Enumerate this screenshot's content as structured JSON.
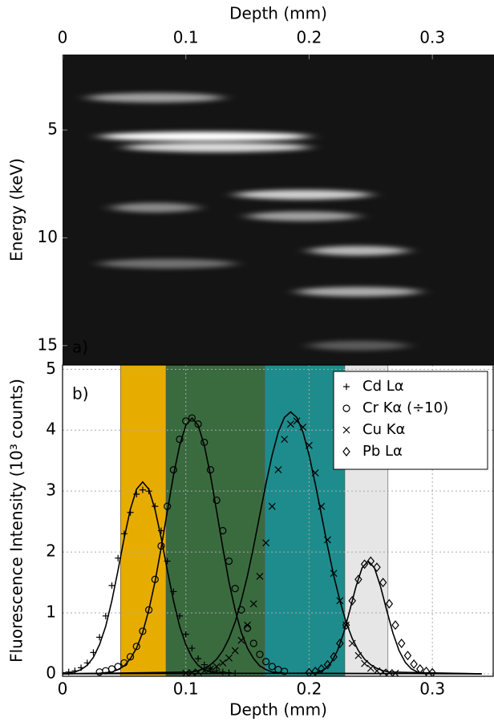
{
  "chart_data": [
    {
      "type": "heatmap",
      "xlabel": "Depth (mm)",
      "ylabel": "Energy (keV)",
      "panel_label": "a)",
      "xlim": [
        0,
        0.35
      ],
      "xticks": [
        0,
        0.1,
        0.2,
        0.3
      ],
      "ylim": [
        1.5,
        15.9
      ],
      "yticks": [
        5,
        10,
        15
      ],
      "bands": [
        {
          "energy": 3.5,
          "depth": [
            0.02,
            0.13
          ],
          "intensity": 0.6
        },
        {
          "energy": 5.3,
          "depth": [
            0.03,
            0.2
          ],
          "intensity": 1.0
        },
        {
          "energy": 5.8,
          "depth": [
            0.05,
            0.2
          ],
          "intensity": 0.85
        },
        {
          "energy": 8.0,
          "depth": [
            0.14,
            0.25
          ],
          "intensity": 0.8
        },
        {
          "energy": 8.6,
          "depth": [
            0.04,
            0.11
          ],
          "intensity": 0.5
        },
        {
          "energy": 9.0,
          "depth": [
            0.15,
            0.24
          ],
          "intensity": 0.6
        },
        {
          "energy": 10.6,
          "depth": [
            0.2,
            0.28
          ],
          "intensity": 0.7
        },
        {
          "energy": 11.2,
          "depth": [
            0.03,
            0.14
          ],
          "intensity": 0.4
        },
        {
          "energy": 12.5,
          "depth": [
            0.19,
            0.29
          ],
          "intensity": 0.65
        },
        {
          "energy": 15.0,
          "depth": [
            0.2,
            0.28
          ],
          "intensity": 0.3
        }
      ]
    },
    {
      "type": "scatter",
      "xlabel": "Depth (mm)",
      "ylabel": "Fluorescence Intensity (10³ counts)",
      "panel_label": "b)",
      "xlim": [
        0,
        0.35
      ],
      "xticks": [
        0,
        0.1,
        0.2,
        0.3
      ],
      "ylim": [
        -0.04,
        5.07
      ],
      "yticks": [
        0,
        1,
        2,
        3,
        4,
        5
      ],
      "grid": true,
      "legend": "upper right",
      "regions": [
        {
          "range": [
            0.047,
            0.084
          ],
          "color": "#e6ac00"
        },
        {
          "range": [
            0.084,
            0.164
          ],
          "color": "#3a6b3f"
        },
        {
          "range": [
            0.164,
            0.229
          ],
          "color": "#1e8c8c"
        },
        {
          "range": [
            0.229,
            0.264
          ],
          "color": "#e6e6e6"
        }
      ],
      "series": [
        {
          "name": "Cd Lα",
          "marker": "+",
          "color": "#000000",
          "x": [
            0,
            0.005,
            0.01,
            0.015,
            0.02,
            0.025,
            0.03,
            0.035,
            0.04,
            0.045,
            0.05,
            0.055,
            0.06,
            0.065,
            0.07,
            0.075,
            0.08,
            0.085,
            0.09,
            0.095,
            0.1,
            0.105,
            0.11,
            0.115,
            0.12,
            0.125,
            0.13,
            0.135,
            0.14
          ],
          "values": [
            0.02,
            0.03,
            0.05,
            0.1,
            0.18,
            0.35,
            0.6,
            0.95,
            1.45,
            1.9,
            2.3,
            2.65,
            2.95,
            3.02,
            3.0,
            2.75,
            2.35,
            1.85,
            1.35,
            0.95,
            0.65,
            0.42,
            0.25,
            0.15,
            0.08,
            0.05,
            0.03,
            0.02,
            0.01
          ],
          "fit_x": [
            0,
            0.01,
            0.015,
            0.02,
            0.025,
            0.03,
            0.035,
            0.04,
            0.045,
            0.05,
            0.055,
            0.06,
            0.065,
            0.07,
            0.075,
            0.08,
            0.085,
            0.09,
            0.095,
            0.1,
            0.105,
            0.11,
            0.115,
            0.12,
            0.13,
            0.34
          ],
          "fit_values": [
            0,
            0.03,
            0.07,
            0.14,
            0.27,
            0.48,
            0.78,
            1.2,
            1.7,
            2.23,
            2.7,
            3.03,
            3.15,
            3.03,
            2.7,
            2.23,
            1.7,
            1.2,
            0.78,
            0.48,
            0.27,
            0.14,
            0.07,
            0.03,
            0.01,
            0
          ]
        },
        {
          "name": "Cr Kα (÷10)",
          "marker": "o",
          "color": "#000000",
          "x": [
            0.03,
            0.035,
            0.04,
            0.045,
            0.05,
            0.055,
            0.06,
            0.065,
            0.07,
            0.075,
            0.08,
            0.085,
            0.09,
            0.095,
            0.1,
            0.105,
            0.11,
            0.115,
            0.12,
            0.125,
            0.13,
            0.135,
            0.14,
            0.145,
            0.15,
            0.155,
            0.16,
            0.165,
            0.17,
            0.175,
            0.18
          ],
          "values": [
            0.03,
            0.05,
            0.08,
            0.12,
            0.18,
            0.28,
            0.45,
            0.7,
            1.05,
            1.55,
            2.1,
            2.75,
            3.35,
            3.85,
            4.15,
            4.2,
            4.1,
            3.8,
            3.35,
            2.85,
            2.35,
            1.85,
            1.4,
            1.05,
            0.75,
            0.5,
            0.32,
            0.2,
            0.12,
            0.07,
            0.04
          ],
          "fit_x": [
            0,
            0.03,
            0.035,
            0.04,
            0.045,
            0.05,
            0.055,
            0.06,
            0.065,
            0.07,
            0.075,
            0.08,
            0.085,
            0.09,
            0.095,
            0.1,
            0.105,
            0.11,
            0.115,
            0.12,
            0.125,
            0.13,
            0.135,
            0.14,
            0.145,
            0.15,
            0.155,
            0.16,
            0.165,
            0.17,
            0.175,
            0.18,
            0.34
          ],
          "fit_values": [
            0,
            0.01,
            0.02,
            0.03,
            0.07,
            0.13,
            0.25,
            0.42,
            0.68,
            1.05,
            1.51,
            2.07,
            2.67,
            3.26,
            3.75,
            4.08,
            4.2,
            4.08,
            3.75,
            3.26,
            2.67,
            2.07,
            1.51,
            1.05,
            0.68,
            0.42,
            0.25,
            0.13,
            0.07,
            0.03,
            0.02,
            0.01,
            0
          ]
        },
        {
          "name": "Cu Kα",
          "marker": "x",
          "color": "#000000",
          "x": [
            0.1,
            0.105,
            0.11,
            0.115,
            0.12,
            0.125,
            0.13,
            0.135,
            0.14,
            0.145,
            0.15,
            0.155,
            0.16,
            0.165,
            0.17,
            0.175,
            0.18,
            0.185,
            0.19,
            0.195,
            0.2,
            0.205,
            0.21,
            0.215,
            0.22,
            0.225,
            0.23,
            0.235,
            0.24,
            0.245,
            0.25,
            0.255,
            0.26,
            0.265,
            0.27
          ],
          "values": [
            0.01,
            0.02,
            0.03,
            0.05,
            0.08,
            0.12,
            0.18,
            0.26,
            0.38,
            0.55,
            0.8,
            1.15,
            1.6,
            2.15,
            2.75,
            3.35,
            3.85,
            4.1,
            4.15,
            4.05,
            3.75,
            3.3,
            2.75,
            2.2,
            1.65,
            1.2,
            0.8,
            0.5,
            0.3,
            0.17,
            0.09,
            0.05,
            0.03,
            0.02,
            0.01
          ],
          "fit_x": [
            0,
            0.105,
            0.11,
            0.115,
            0.12,
            0.125,
            0.13,
            0.135,
            0.14,
            0.145,
            0.15,
            0.155,
            0.16,
            0.165,
            0.17,
            0.175,
            0.18,
            0.185,
            0.19,
            0.195,
            0.2,
            0.205,
            0.21,
            0.215,
            0.22,
            0.225,
            0.23,
            0.235,
            0.24,
            0.245,
            0.25,
            0.255,
            0.26,
            0.265,
            0.34
          ],
          "fit_values": [
            0,
            0.03,
            0.05,
            0.09,
            0.15,
            0.24,
            0.38,
            0.58,
            0.85,
            1.2,
            1.61,
            2.09,
            2.61,
            3.12,
            3.59,
            3.97,
            4.21,
            4.3,
            4.21,
            3.97,
            3.59,
            3.12,
            2.61,
            2.09,
            1.61,
            1.2,
            0.85,
            0.58,
            0.38,
            0.24,
            0.15,
            0.09,
            0.05,
            0.03,
            0
          ]
        },
        {
          "name": "Pb Lα",
          "marker": "d",
          "color": "#000000",
          "x": [
            0.2,
            0.205,
            0.21,
            0.215,
            0.22,
            0.225,
            0.23,
            0.235,
            0.24,
            0.245,
            0.25,
            0.255,
            0.26,
            0.265,
            0.27,
            0.275,
            0.28,
            0.285,
            0.29,
            0.295,
            0.3
          ],
          "values": [
            0.02,
            0.04,
            0.08,
            0.15,
            0.28,
            0.5,
            0.8,
            1.2,
            1.55,
            1.8,
            1.85,
            1.75,
            1.5,
            1.15,
            0.8,
            0.5,
            0.3,
            0.16,
            0.08,
            0.04,
            0.02
          ],
          "fit_x": [
            0,
            0.203,
            0.208,
            0.213,
            0.218,
            0.223,
            0.228,
            0.233,
            0.238,
            0.243,
            0.248,
            0.253,
            0.258,
            0.263,
            0.268,
            0.273,
            0.278,
            0.283,
            0.288,
            0.293,
            0.34
          ],
          "fit_values": [
            0,
            0.01,
            0.03,
            0.08,
            0.19,
            0.38,
            0.67,
            1.04,
            1.43,
            1.74,
            1.85,
            1.74,
            1.43,
            1.04,
            0.67,
            0.38,
            0.19,
            0.08,
            0.03,
            0.01,
            0
          ]
        }
      ]
    }
  ]
}
